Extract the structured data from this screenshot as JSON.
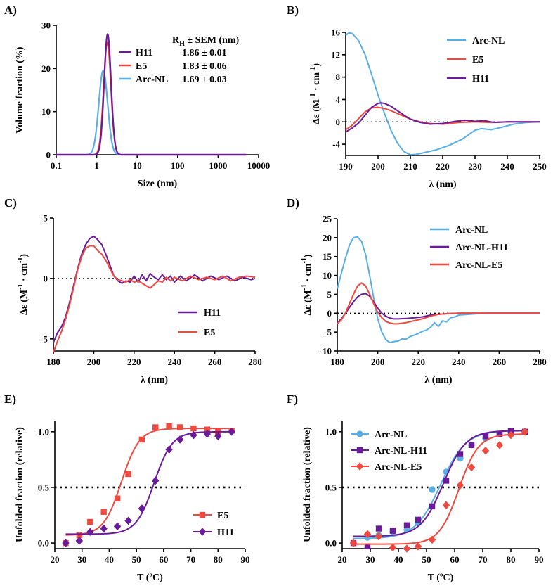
{
  "colors": {
    "blue": "#5aaee6",
    "red": "#ee4a40",
    "purple": "#6a1b9a"
  },
  "chart_data": [
    {
      "panel": "A)",
      "type": "line",
      "xscale": "log",
      "xlabel": "Size (nm)",
      "ylabel": "Volume fraction (%)",
      "xlim": [
        0.1,
        10000
      ],
      "ylim": [
        0,
        30
      ],
      "xticks": [
        0.1,
        1,
        10,
        100,
        1000,
        10000
      ],
      "xtick_labels": [
        "0.1",
        "1",
        "10",
        "100",
        "1000",
        "10000"
      ],
      "yticks": [
        0,
        10,
        20,
        30
      ],
      "ytick_labels": [
        "0",
        "10",
        "20",
        "30"
      ],
      "table_header": "RH ± SEM (nm)",
      "header_main": "R",
      "header_sub": "H",
      "header_rest": " ± SEM (nm)",
      "series": [
        {
          "name": "H11",
          "value_label": "1.86 ± 0.01",
          "color": "purple",
          "peak_x": 1.86,
          "peak_y": 28,
          "width": 0.085
        },
        {
          "name": "E5",
          "value_label": "1.83 ± 0.06",
          "color": "red",
          "peak_x": 1.83,
          "peak_y": 26,
          "width": 0.09
        },
        {
          "name": "Arc-NL",
          "value_label": "1.69 ± 0.03",
          "color": "blue",
          "peak_x": 1.45,
          "peak_y": 19.5,
          "width": 0.11
        }
      ]
    },
    {
      "panel": "B)",
      "type": "line",
      "xlabel": "λ (nm)",
      "ylabel": "Δε (M⁻¹ · cm⁻¹)",
      "ylabel_main": "Δε (M",
      "ylabel_sup1": "-1",
      "ylabel_mid": " · cm",
      "ylabel_sup2": "-1",
      "ylabel_end": ")",
      "xlim": [
        190,
        250
      ],
      "ylim": [
        -6,
        16
      ],
      "xticks": [
        190,
        200,
        210,
        220,
        230,
        240,
        250
      ],
      "xtick_labels": [
        "190",
        "200",
        "210",
        "220",
        "230",
        "240",
        "250"
      ],
      "yticks": [
        -4,
        0,
        4,
        8,
        12,
        16
      ],
      "ytick_labels": [
        "-4",
        "0",
        "4",
        "8",
        "12",
        "16"
      ],
      "series": [
        {
          "name": "Arc-NL",
          "color": "blue",
          "x": [
            190,
            191,
            192,
            194,
            196,
            198,
            200,
            202,
            204,
            206,
            208,
            210,
            212,
            215,
            218,
            222,
            226,
            230,
            232,
            235,
            238,
            242,
            246,
            250
          ],
          "y": [
            15.5,
            15.9,
            15.8,
            14.5,
            12,
            8.5,
            4.8,
            1.5,
            -1.5,
            -3.8,
            -5.3,
            -5.9,
            -5.8,
            -5.4,
            -5.0,
            -4.2,
            -3.1,
            -1.5,
            -1.2,
            -1.4,
            -1.0,
            -0.4,
            -0.1,
            0
          ]
        },
        {
          "name": "E5",
          "color": "red",
          "x": [
            190,
            192,
            194,
            196,
            198,
            200,
            202,
            204,
            206,
            208,
            210,
            213,
            216,
            220,
            225,
            230,
            235,
            240,
            245,
            250
          ],
          "y": [
            -1.4,
            -0.6,
            0.6,
            1.8,
            2.5,
            2.6,
            2.4,
            2.0,
            1.5,
            1.0,
            0.5,
            0.0,
            -0.3,
            -0.4,
            -0.1,
            0.0,
            -0.1,
            0,
            0,
            0
          ]
        },
        {
          "name": "H11",
          "color": "purple",
          "x": [
            190,
            192,
            194,
            196,
            198,
            200,
            201,
            202,
            204,
            206,
            208,
            210,
            213,
            216,
            220,
            224,
            227,
            230,
            233,
            236,
            240,
            245,
            250
          ],
          "y": [
            -1.8,
            -1.1,
            -0.2,
            1.2,
            2.6,
            3.3,
            3.4,
            3.3,
            2.8,
            2.0,
            1.2,
            0.5,
            -0.1,
            -0.4,
            -0.3,
            0.1,
            0.3,
            0.1,
            0.2,
            -0.1,
            0,
            0,
            0
          ]
        }
      ]
    },
    {
      "panel": "C)",
      "type": "line",
      "xlabel": "λ (nm)",
      "ylabel_main": "Δε (M",
      "ylabel_sup1": "-1",
      "ylabel_mid": " · cm",
      "ylabel_sup2": "-1",
      "ylabel_end": ")",
      "xlim": [
        180,
        280
      ],
      "ylim": [
        -6,
        5
      ],
      "xticks": [
        180,
        200,
        220,
        240,
        260,
        280
      ],
      "xtick_labels": [
        "180",
        "200",
        "220",
        "240",
        "260",
        "280"
      ],
      "yticks": [
        -5,
        0,
        5
      ],
      "ytick_labels": [
        "-5",
        "0",
        "5"
      ],
      "series": [
        {
          "name": "H11",
          "color": "purple",
          "x": [
            180,
            182,
            184,
            186,
            188,
            190,
            192,
            194,
            196,
            198,
            200,
            202,
            204,
            206,
            208,
            210,
            212,
            214,
            216,
            218,
            220,
            222,
            224,
            226,
            228,
            230,
            232,
            234,
            236,
            238,
            240,
            243,
            246,
            250,
            254,
            258,
            262,
            266,
            270,
            274,
            278,
            280
          ],
          "y": [
            -5.3,
            -4.5,
            -4.0,
            -3.2,
            -2.0,
            -0.6,
            0.8,
            2.0,
            2.8,
            3.3,
            3.5,
            3.2,
            2.8,
            2.0,
            1.1,
            0.2,
            -0.2,
            -0.4,
            -0.2,
            -0.3,
            0.2,
            -0.3,
            0.3,
            -0.2,
            0.4,
            0.1,
            -0.1,
            0.3,
            -0.1,
            0.2,
            -0.3,
            0.2,
            -0.2,
            0.3,
            -0.2,
            0.2,
            -0.1,
            0.2,
            -0.2,
            0.1,
            -0.1,
            0.0
          ]
        },
        {
          "name": "E5",
          "color": "red",
          "x": [
            180,
            182,
            184,
            186,
            188,
            190,
            192,
            194,
            196,
            198,
            200,
            202,
            204,
            206,
            208,
            210,
            212,
            214,
            216,
            218,
            220,
            222,
            224,
            226,
            228,
            230,
            232,
            234,
            236,
            238,
            240,
            244,
            248,
            252,
            256,
            260,
            264,
            268,
            272,
            276,
            280
          ],
          "y": [
            -6.1,
            -5.2,
            -4.4,
            -3.4,
            -2.2,
            -0.8,
            0.7,
            1.8,
            2.5,
            2.7,
            2.7,
            2.3,
            2.0,
            1.5,
            0.8,
            0.2,
            -0.1,
            -0.2,
            -0.3,
            -0.1,
            -0.3,
            -0.2,
            -0.4,
            -0.6,
            -0.8,
            -0.5,
            -0.2,
            -0.3,
            0.1,
            -0.2,
            0.1,
            -0.2,
            0.2,
            -0.1,
            0.1,
            -0.1,
            0.2,
            -0.2,
            0.1,
            0.2,
            0.1
          ]
        }
      ]
    },
    {
      "panel": "D)",
      "type": "line",
      "xlabel": "λ (nm)",
      "ylabel_main": "Δε (M",
      "ylabel_sup1": "-1",
      "ylabel_mid": " · cm",
      "ylabel_sup2": "-1",
      "ylabel_end": ")",
      "xlim": [
        180,
        280
      ],
      "ylim": [
        -10,
        25
      ],
      "xticks": [
        180,
        200,
        220,
        240,
        260,
        280
      ],
      "xtick_labels": [
        "180",
        "200",
        "220",
        "240",
        "260",
        "280"
      ],
      "yticks": [
        -10,
        -5,
        0,
        5,
        10,
        15,
        20,
        25
      ],
      "ytick_labels": [
        "-10",
        "-5",
        "0",
        "5",
        "10",
        "15",
        "20",
        "25"
      ],
      "series": [
        {
          "name": "Arc-NL",
          "color": "blue",
          "x": [
            180,
            182,
            184,
            186,
            188,
            190,
            192,
            194,
            196,
            198,
            200,
            202,
            204,
            206,
            208,
            210,
            212,
            214,
            216,
            218,
            220,
            222,
            224,
            226,
            228,
            230,
            232,
            234,
            236,
            238,
            240,
            245,
            250,
            255,
            260,
            265,
            270,
            275,
            280
          ],
          "y": [
            6.5,
            10.5,
            14.5,
            18,
            20,
            20.2,
            19,
            15.5,
            10,
            4,
            -1.5,
            -5,
            -7,
            -7.8,
            -7.5,
            -7.4,
            -6.8,
            -6.9,
            -6.2,
            -5.8,
            -5.4,
            -4.8,
            -4.5,
            -3.8,
            -2.5,
            -3.5,
            -2.0,
            -2.3,
            -1.2,
            -1.0,
            -0.5,
            -0.3,
            -0.1,
            0,
            0,
            0,
            0,
            0,
            0
          ]
        },
        {
          "name": "Arc-NL-H11",
          "color": "purple",
          "x": [
            180,
            182,
            184,
            186,
            188,
            190,
            192,
            194,
            196,
            198,
            200,
            202,
            204,
            206,
            208,
            210,
            214,
            218,
            222,
            226,
            230,
            235,
            240,
            250,
            260,
            270,
            280
          ],
          "y": [
            -2.5,
            -1.5,
            0,
            1.5,
            3,
            4.3,
            5.0,
            5.2,
            4.5,
            3.0,
            1.3,
            0.0,
            -0.8,
            -1.3,
            -1.5,
            -1.5,
            -1.4,
            -1.2,
            -1.0,
            -0.5,
            -0.3,
            -0.1,
            0,
            0,
            0,
            0,
            0
          ]
        },
        {
          "name": "Arc-NL-E5",
          "color": "red",
          "x": [
            180,
            182,
            184,
            186,
            188,
            190,
            192,
            194,
            196,
            198,
            200,
            202,
            204,
            206,
            208,
            210,
            214,
            218,
            222,
            226,
            230,
            235,
            240,
            250,
            260,
            270,
            280
          ],
          "y": [
            -2.8,
            -1.8,
            0,
            2.5,
            5,
            7.2,
            8.0,
            7.2,
            5.0,
            2.5,
            0.2,
            -1.2,
            -2.2,
            -2.6,
            -2.8,
            -2.8,
            -2.5,
            -2.0,
            -1.5,
            -0.8,
            -0.3,
            -0.1,
            0,
            0,
            0,
            0,
            0
          ]
        }
      ]
    },
    {
      "panel": "E)",
      "type": "scatter",
      "xlabel": "T (ºC)",
      "ylabel": "Unfolded fraction (relative)",
      "xlim": [
        20,
        90
      ],
      "ylim": [
        -0.05,
        1.1
      ],
      "xticks": [
        20,
        30,
        40,
        50,
        60,
        70,
        80,
        90
      ],
      "xtick_labels": [
        "20",
        "30",
        "40",
        "50",
        "60",
        "70",
        "80",
        "90"
      ],
      "yticks": [
        0,
        0.5,
        1
      ],
      "ytick_labels": [
        "0.0",
        "0.5",
        "1.0"
      ],
      "reference_y": 0.5,
      "series": [
        {
          "name": "E5",
          "color": "red",
          "marker": "square",
          "x": [
            24,
            29,
            33,
            38,
            43,
            47,
            52,
            57,
            62,
            66,
            71,
            76,
            80,
            85
          ],
          "y": [
            0.0,
            0.07,
            0.19,
            0.28,
            0.4,
            0.62,
            0.93,
            1.04,
            1.05,
            1.04,
            1.03,
            1.02,
            1.0,
            1.01
          ],
          "fit": {
            "bottom": 0.07,
            "top": 1.03,
            "tm": 44.5,
            "slope": 3.3,
            "x_start": 24,
            "x_end": 85
          }
        },
        {
          "name": "H11",
          "color": "purple",
          "marker": "diamond",
          "x": [
            24,
            29,
            33,
            38,
            43,
            47,
            52,
            57,
            62,
            66,
            71,
            76,
            80,
            85
          ],
          "y": [
            0.0,
            0.02,
            0.1,
            0.13,
            0.15,
            0.2,
            0.31,
            0.56,
            0.84,
            0.93,
            0.97,
            0.98,
            0.96,
            1.0
          ],
          "fit": {
            "bottom": 0.08,
            "top": 1.0,
            "tm": 56.5,
            "slope": 3.3,
            "x_start": 24,
            "x_end": 85
          }
        }
      ]
    },
    {
      "panel": "F)",
      "type": "scatter",
      "xlabel": "T (ºC)",
      "ylabel": "Unfolded fraction (relative)",
      "xlim": [
        20,
        90
      ],
      "ylim": [
        -0.05,
        1.1
      ],
      "xticks": [
        20,
        30,
        40,
        50,
        60,
        70,
        80,
        90
      ],
      "xtick_labels": [
        "20",
        "30",
        "40",
        "50",
        "60",
        "70",
        "80",
        "90"
      ],
      "yticks": [
        0,
        0.5,
        1
      ],
      "ytick_labels": [
        "0.0",
        "0.5",
        "1.0"
      ],
      "reference_y": 0.5,
      "series": [
        {
          "name": "Arc-NL",
          "color": "blue",
          "marker": "circle",
          "x": [
            24,
            29,
            33,
            38,
            43,
            47,
            52,
            57,
            62,
            66,
            71,
            76,
            80,
            85
          ],
          "y": [
            0.0,
            0.05,
            0.07,
            0.1,
            0.12,
            0.18,
            0.48,
            0.64,
            0.76,
            0.88,
            0.94,
            0.98,
            0.99,
            1.0
          ],
          "fit": {
            "bottom": 0.04,
            "top": 1.01,
            "tm": 55.0,
            "slope": 4.5,
            "x_start": 24,
            "x_end": 85
          }
        },
        {
          "name": "Arc-NL-H11",
          "color": "purple",
          "marker": "square",
          "x": [
            24,
            29,
            33,
            38,
            43,
            47,
            52,
            57,
            62,
            66,
            71,
            76,
            80,
            85
          ],
          "y": [
            0.0,
            -0.03,
            0.13,
            0.11,
            0.16,
            0.21,
            0.33,
            0.56,
            0.8,
            0.88,
            0.96,
            0.98,
            1.01,
            1.0
          ],
          "fit": {
            "bottom": 0.06,
            "top": 1.01,
            "tm": 56.0,
            "slope": 4.0,
            "x_start": 24,
            "x_end": 85
          }
        },
        {
          "name": "Arc-NL-E5",
          "color": "red",
          "marker": "diamond",
          "x": [
            24,
            29,
            33,
            38,
            43,
            47,
            52,
            57,
            62,
            66,
            71,
            76,
            80,
            85
          ],
          "y": [
            0.0,
            0.08,
            0.06,
            -0.04,
            -0.05,
            -0.03,
            0.03,
            0.34,
            0.52,
            0.68,
            0.83,
            0.88,
            0.97,
            1.0
          ],
          "fit": {
            "bottom": -0.01,
            "top": 0.98,
            "tm": 61.5,
            "slope": 3.5,
            "x_start": 24,
            "x_end": 85
          }
        }
      ]
    }
  ]
}
